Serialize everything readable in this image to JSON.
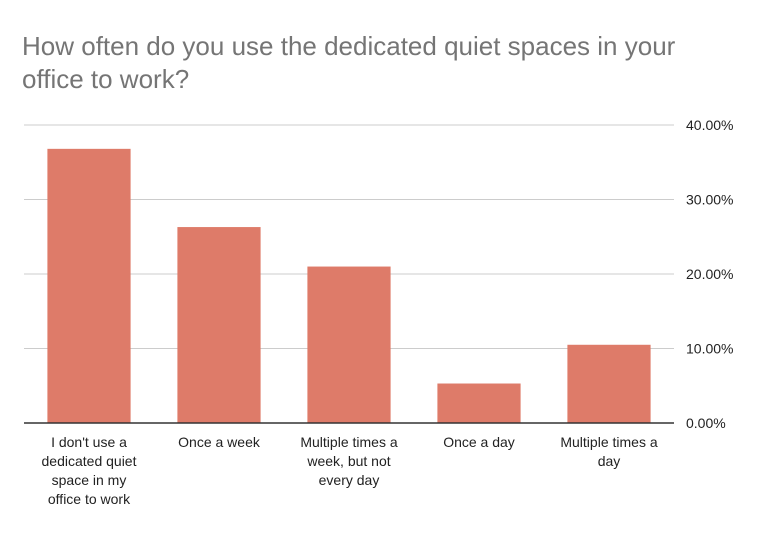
{
  "chart_data": {
    "type": "bar",
    "title": "How often do you use the dedicated quiet spaces in your office to work?",
    "categories": [
      "I don't use a dedicated quiet space in my office to work",
      "Once a week",
      "Multiple times a week, but not every day",
      "Once a day",
      "Multiple times a day"
    ],
    "category_lines": [
      [
        "I don't use a",
        "dedicated quiet",
        "space in my",
        "office to work"
      ],
      [
        "Once a week"
      ],
      [
        "Multiple times a",
        "week, but not",
        "every day"
      ],
      [
        "Once a day"
      ],
      [
        "Multiple times a",
        "day"
      ]
    ],
    "values": [
      36.8,
      26.3,
      21.0,
      5.3,
      10.5
    ],
    "ylim": [
      0,
      40
    ],
    "yticks": [
      0,
      10,
      20,
      30,
      40
    ],
    "ytick_labels": [
      "0.00%",
      "10.00%",
      "20.00%",
      "30.00%",
      "40.00%"
    ],
    "y_axis_side": "right",
    "grid": true,
    "legend": "none",
    "bar_color": "#de7b69",
    "grid_color": "#cccccc",
    "axis_color": "#333333"
  }
}
